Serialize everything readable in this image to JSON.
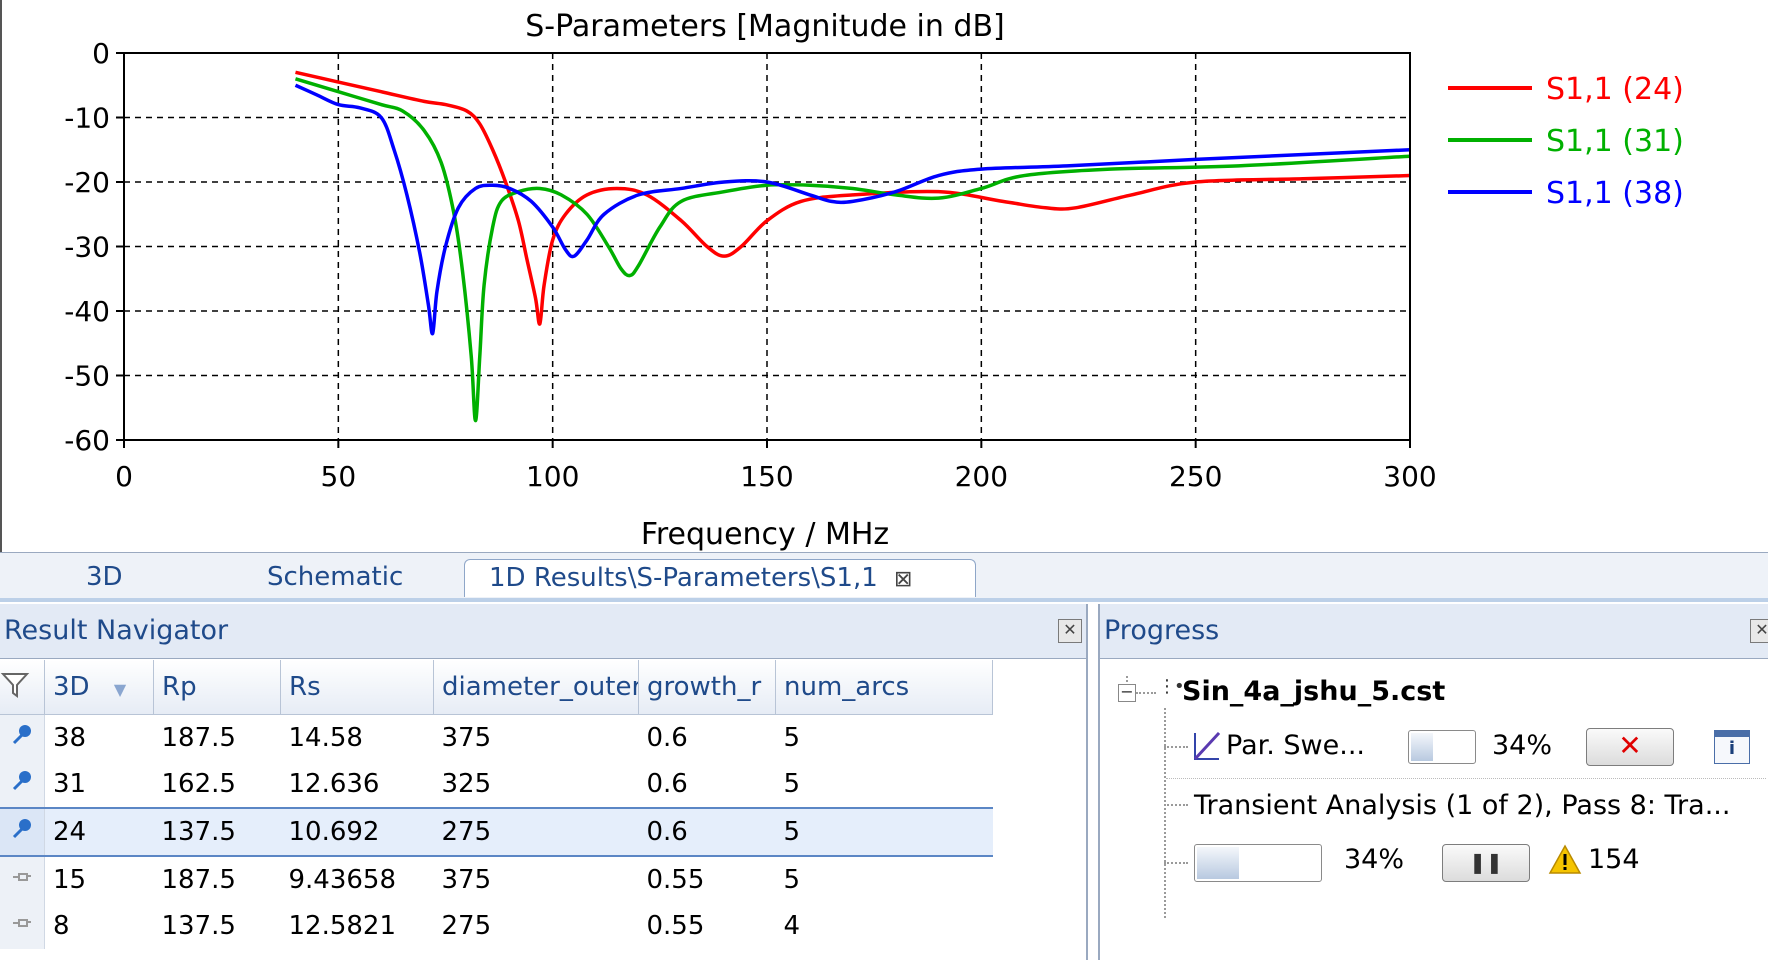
{
  "chart_data": {
    "type": "line",
    "title": "S-Parameters [Magnitude in dB]",
    "xlabel": "Frequency / MHz",
    "ylabel": "",
    "xlim": [
      0,
      300
    ],
    "ylim": [
      -60,
      0
    ],
    "xticks": [
      "0",
      "50",
      "100",
      "150",
      "200",
      "250",
      "300"
    ],
    "yticks": [
      "0",
      "-10",
      "-20",
      "-30",
      "-40",
      "-50",
      "-60"
    ],
    "grid": true,
    "legend_position": "right",
    "series": [
      {
        "name": "S1,1 (24)",
        "color": "#ff0000",
        "x": [
          40,
          50,
          60,
          70,
          75,
          80,
          83,
          86,
          89,
          92,
          94,
          96,
          97,
          98,
          100,
          103,
          108,
          115,
          122,
          130,
          136,
          140,
          144,
          150,
          158,
          170,
          190,
          205,
          215,
          222,
          235,
          250,
          275,
          300
        ],
        "y": [
          -3,
          -4.5,
          -6,
          -7.5,
          -8,
          -9,
          -11,
          -15,
          -20,
          -26,
          -32,
          -38,
          -42,
          -36,
          -29,
          -25,
          -22,
          -21,
          -22,
          -26,
          -30,
          -31.5,
          -30,
          -26,
          -23,
          -22,
          -21.5,
          -23,
          -24,
          -24,
          -22,
          -20,
          -19.5,
          -19
        ]
      },
      {
        "name": "S1,1 (31)",
        "color": "#00b000",
        "x": [
          40,
          50,
          60,
          65,
          70,
          74,
          77,
          79,
          81,
          82,
          83,
          84,
          86,
          88,
          92,
          97,
          102,
          108,
          113,
          116,
          118,
          120,
          125,
          130,
          140,
          150,
          160,
          170,
          180,
          190,
          200,
          210,
          230,
          260,
          300
        ],
        "y": [
          -4,
          -6,
          -8,
          -9,
          -12,
          -17,
          -25,
          -34,
          -47,
          -57,
          -47,
          -36,
          -27,
          -23,
          -21.5,
          -21,
          -22,
          -25,
          -30,
          -33.5,
          -34.5,
          -33,
          -27,
          -23,
          -21.5,
          -20.5,
          -20.5,
          -21,
          -22,
          -22.5,
          -21,
          -19,
          -18,
          -17.5,
          -16
        ]
      },
      {
        "name": "S1,1 (38)",
        "color": "#0000ff",
        "x": [
          40,
          45,
          50,
          55,
          60,
          63,
          66,
          69,
          71,
          72,
          73,
          75,
          78,
          82,
          86,
          90,
          95,
          100,
          103,
          105,
          108,
          112,
          120,
          130,
          140,
          150,
          160,
          165,
          170,
          180,
          190,
          200,
          220,
          250,
          300
        ],
        "y": [
          -5,
          -6.5,
          -8,
          -8.5,
          -10,
          -15,
          -22,
          -31,
          -39,
          -43.5,
          -37,
          -30,
          -24,
          -21,
          -20.5,
          -21,
          -23,
          -27,
          -30.5,
          -31.5,
          -29,
          -25,
          -22,
          -21,
          -20,
          -20,
          -22,
          -23,
          -23,
          -21.5,
          -19,
          -18,
          -17.5,
          -16.5,
          -15
        ]
      }
    ]
  },
  "tabs": [
    {
      "label": "3D"
    },
    {
      "label": "Schematic"
    },
    {
      "label": "1D Results\\S-Parameters\\S1,1"
    }
  ],
  "result_navigator": {
    "title": "Result Navigator",
    "columns": [
      "3D",
      "Rp",
      "Rs",
      "diameter_outer",
      "growth_r",
      "num_arcs"
    ],
    "rows": [
      {
        "id": "38",
        "rp": "187.5",
        "rs": "14.58",
        "diameter_outer": "375",
        "growth": "0.6",
        "num_arcs": "5",
        "icon": "pin-icon",
        "selected": false
      },
      {
        "id": "31",
        "rp": "162.5",
        "rs": "12.636",
        "diameter_outer": "325",
        "growth": "0.6",
        "num_arcs": "5",
        "icon": "pin-icon",
        "selected": false
      },
      {
        "id": "24",
        "rp": "137.5",
        "rs": "10.692",
        "diameter_outer": "275",
        "growth": "0.6",
        "num_arcs": "5",
        "icon": "pin-icon",
        "selected": true
      },
      {
        "id": "15",
        "rp": "187.5",
        "rs": "9.43658",
        "diameter_outer": "375",
        "growth": "0.55",
        "num_arcs": "5",
        "icon": "unpinned-icon",
        "selected": false
      },
      {
        "id": "8",
        "rp": "137.5",
        "rs": "12.5821",
        "diameter_outer": "275",
        "growth": "0.55",
        "num_arcs": "4",
        "icon": "unpinned-icon",
        "selected": false
      }
    ]
  },
  "progress": {
    "title": "Progress",
    "project": "Sin_4a_jshu_5.cst",
    "par_sweep": {
      "label": "Par. Swe...",
      "percent_text": "34%",
      "fraction": 0.34
    },
    "transient": {
      "label": "Transient Analysis (1 of 2), Pass 8: Tra...",
      "percent_text": "34%",
      "fraction": 0.34,
      "warnings": "154"
    }
  }
}
